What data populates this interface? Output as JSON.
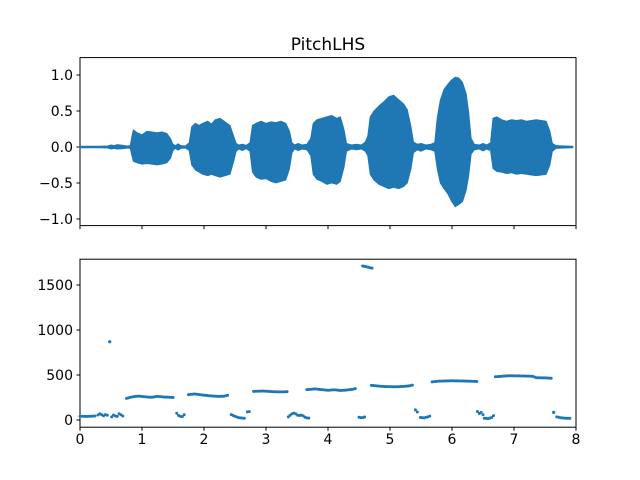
{
  "figure": {
    "background": "#ffffff"
  },
  "colors": {
    "series": "#1f77b4",
    "text": "#000000",
    "spine": "#000000"
  },
  "chart_data": [
    {
      "id": "waveform",
      "type": "area",
      "title": "PitchLHS",
      "xlabel": "",
      "ylabel": "",
      "xlim": [
        0,
        8
      ],
      "ylim": [
        -1.092,
        1.242
      ],
      "grid": false,
      "legend": "none",
      "xticks": {
        "values": [
          0,
          1,
          2,
          3,
          4,
          5,
          6,
          7,
          8
        ],
        "labels": [
          "",
          "",
          "",
          "",
          "",
          "",
          "",
          "",
          ""
        ]
      },
      "yticks": {
        "values": [
          1.0,
          0.5,
          0.0,
          -0.5,
          -1.0
        ],
        "labels": [
          "1.0",
          "0.5",
          "0.0",
          "−0.5",
          "−1.0"
        ]
      },
      "envelope_t_lo_hi": [
        [
          0.0,
          -0.012,
          0.012
        ],
        [
          0.3,
          -0.012,
          0.012
        ],
        [
          0.45,
          -0.015,
          0.015
        ],
        [
          0.5,
          -0.03,
          0.03
        ],
        [
          0.55,
          -0.02,
          0.02
        ],
        [
          0.6,
          -0.03,
          0.035
        ],
        [
          0.68,
          -0.025,
          0.025
        ],
        [
          0.76,
          -0.015,
          0.015
        ],
        [
          0.81,
          -0.02,
          0.02
        ],
        [
          0.83,
          -0.1,
          0.12
        ],
        [
          0.86,
          -0.2,
          0.24
        ],
        [
          0.92,
          -0.22,
          0.2
        ],
        [
          1.0,
          -0.24,
          0.17
        ],
        [
          1.08,
          -0.23,
          0.22
        ],
        [
          1.16,
          -0.24,
          0.21
        ],
        [
          1.24,
          -0.25,
          0.2
        ],
        [
          1.32,
          -0.24,
          0.21
        ],
        [
          1.4,
          -0.22,
          0.19
        ],
        [
          1.46,
          -0.16,
          0.12
        ],
        [
          1.5,
          -0.05,
          0.04
        ],
        [
          1.54,
          -0.02,
          0.02
        ],
        [
          1.58,
          -0.045,
          0.045
        ],
        [
          1.63,
          -0.02,
          0.02
        ],
        [
          1.7,
          -0.015,
          0.015
        ],
        [
          1.76,
          -0.05,
          0.06
        ],
        [
          1.8,
          -0.25,
          0.28
        ],
        [
          1.86,
          -0.32,
          0.33
        ],
        [
          1.92,
          -0.35,
          0.3
        ],
        [
          1.98,
          -0.38,
          0.33
        ],
        [
          2.06,
          -0.4,
          0.36
        ],
        [
          2.12,
          -0.38,
          0.32
        ],
        [
          2.18,
          -0.4,
          0.38
        ],
        [
          2.26,
          -0.42,
          0.4
        ],
        [
          2.34,
          -0.4,
          0.35
        ],
        [
          2.42,
          -0.38,
          0.3
        ],
        [
          2.48,
          -0.2,
          0.15
        ],
        [
          2.52,
          -0.06,
          0.05
        ],
        [
          2.56,
          -0.03,
          0.03
        ],
        [
          2.62,
          -0.05,
          0.04
        ],
        [
          2.68,
          -0.025,
          0.025
        ],
        [
          2.74,
          -0.06,
          0.06
        ],
        [
          2.78,
          -0.35,
          0.3
        ],
        [
          2.84,
          -0.42,
          0.33
        ],
        [
          2.92,
          -0.45,
          0.36
        ],
        [
          3.0,
          -0.44,
          0.33
        ],
        [
          3.08,
          -0.48,
          0.35
        ],
        [
          3.16,
          -0.5,
          0.34
        ],
        [
          3.24,
          -0.48,
          0.36
        ],
        [
          3.32,
          -0.46,
          0.33
        ],
        [
          3.38,
          -0.3,
          0.22
        ],
        [
          3.42,
          -0.08,
          0.06
        ],
        [
          3.46,
          -0.03,
          0.03
        ],
        [
          3.52,
          -0.05,
          0.05
        ],
        [
          3.58,
          -0.03,
          0.03
        ],
        [
          3.66,
          -0.04,
          0.04
        ],
        [
          3.72,
          -0.12,
          0.12
        ],
        [
          3.76,
          -0.38,
          0.33
        ],
        [
          3.82,
          -0.45,
          0.38
        ],
        [
          3.9,
          -0.48,
          0.4
        ],
        [
          3.98,
          -0.52,
          0.42
        ],
        [
          4.06,
          -0.5,
          0.44
        ],
        [
          4.14,
          -0.52,
          0.4
        ],
        [
          4.2,
          -0.48,
          0.42
        ],
        [
          4.26,
          -0.28,
          0.24
        ],
        [
          4.3,
          -0.06,
          0.05
        ],
        [
          4.38,
          -0.03,
          0.03
        ],
        [
          4.46,
          -0.04,
          0.04
        ],
        [
          4.54,
          -0.03,
          0.03
        ],
        [
          4.6,
          -0.06,
          0.07
        ],
        [
          4.64,
          -0.12,
          0.15
        ],
        [
          4.68,
          -0.38,
          0.42
        ],
        [
          4.74,
          -0.46,
          0.5
        ],
        [
          4.82,
          -0.52,
          0.57
        ],
        [
          4.9,
          -0.55,
          0.63
        ],
        [
          4.98,
          -0.58,
          0.7
        ],
        [
          5.06,
          -0.56,
          0.72
        ],
        [
          5.14,
          -0.58,
          0.66
        ],
        [
          5.22,
          -0.55,
          0.6
        ],
        [
          5.28,
          -0.5,
          0.52
        ],
        [
          5.34,
          -0.3,
          0.28
        ],
        [
          5.38,
          -0.08,
          0.07
        ],
        [
          5.44,
          -0.04,
          0.04
        ],
        [
          5.5,
          -0.06,
          0.05
        ],
        [
          5.58,
          -0.03,
          0.03
        ],
        [
          5.66,
          -0.04,
          0.04
        ],
        [
          5.72,
          -0.06,
          0.06
        ],
        [
          5.76,
          -0.3,
          0.4
        ],
        [
          5.81,
          -0.5,
          0.65
        ],
        [
          5.87,
          -0.58,
          0.8
        ],
        [
          5.93,
          -0.65,
          0.87
        ],
        [
          5.99,
          -0.75,
          0.93
        ],
        [
          6.05,
          -0.83,
          0.97
        ],
        [
          6.11,
          -0.8,
          0.96
        ],
        [
          6.17,
          -0.76,
          0.9
        ],
        [
          6.23,
          -0.6,
          0.74
        ],
        [
          6.27,
          -0.4,
          0.48
        ],
        [
          6.31,
          -0.1,
          0.12
        ],
        [
          6.36,
          -0.04,
          0.04
        ],
        [
          6.44,
          -0.03,
          0.03
        ],
        [
          6.5,
          -0.055,
          0.05
        ],
        [
          6.56,
          -0.03,
          0.03
        ],
        [
          6.62,
          -0.05,
          0.06
        ],
        [
          6.66,
          -0.3,
          0.4
        ],
        [
          6.72,
          -0.34,
          0.42
        ],
        [
          6.8,
          -0.35,
          0.38
        ],
        [
          6.88,
          -0.37,
          0.36
        ],
        [
          6.96,
          -0.36,
          0.38
        ],
        [
          7.04,
          -0.38,
          0.37
        ],
        [
          7.12,
          -0.37,
          0.38
        ],
        [
          7.2,
          -0.38,
          0.36
        ],
        [
          7.28,
          -0.39,
          0.37
        ],
        [
          7.36,
          -0.4,
          0.38
        ],
        [
          7.44,
          -0.39,
          0.37
        ],
        [
          7.52,
          -0.38,
          0.36
        ],
        [
          7.58,
          -0.25,
          0.22
        ],
        [
          7.62,
          -0.06,
          0.05
        ],
        [
          7.68,
          -0.02,
          0.02
        ],
        [
          7.82,
          -0.015,
          0.015
        ],
        [
          7.95,
          -0.012,
          0.012
        ]
      ]
    },
    {
      "id": "pitch",
      "type": "scatter",
      "title": "",
      "xlabel": "",
      "ylabel": "",
      "xlim": [
        0,
        8
      ],
      "ylim": [
        -80,
        1787
      ],
      "grid": false,
      "legend": "none",
      "xticks": {
        "values": [
          0,
          1,
          2,
          3,
          4,
          5,
          6,
          7,
          8
        ],
        "labels": [
          "0",
          "1",
          "2",
          "3",
          "4",
          "5",
          "6",
          "7",
          "8"
        ]
      },
      "yticks": {
        "values": [
          0,
          500,
          1000,
          1500
        ],
        "labels": [
          "0",
          "500",
          "1000",
          "1500"
        ]
      },
      "dot_interval": 0.03,
      "segments": [
        [
          [
            0.0,
            42
          ],
          [
            0.1,
            40
          ],
          [
            0.2,
            42
          ],
          [
            0.26,
            45
          ]
        ],
        [
          [
            0.29,
            55
          ],
          [
            0.33,
            75
          ],
          [
            0.37,
            42
          ],
          [
            0.42,
            65
          ],
          [
            0.46,
            40
          ]
        ],
        [
          [
            0.48,
            870
          ]
        ],
        [
          [
            0.51,
            35
          ],
          [
            0.55,
            60
          ],
          [
            0.59,
            30
          ],
          [
            0.63,
            70
          ],
          [
            0.67,
            55
          ],
          [
            0.7,
            40
          ]
        ],
        [
          [
            0.75,
            240
          ],
          [
            0.85,
            258
          ],
          [
            0.95,
            266
          ],
          [
            1.05,
            258
          ],
          [
            1.15,
            252
          ],
          [
            1.25,
            263
          ],
          [
            1.35,
            256
          ],
          [
            1.45,
            252
          ],
          [
            1.52,
            250
          ]
        ],
        [
          [
            1.56,
            75
          ],
          [
            1.6,
            42
          ],
          [
            1.65,
            38
          ],
          [
            1.7,
            72
          ]
        ],
        [
          [
            1.75,
            282
          ],
          [
            1.85,
            290
          ],
          [
            1.95,
            280
          ],
          [
            2.05,
            272
          ],
          [
            2.15,
            266
          ],
          [
            2.25,
            262
          ],
          [
            2.33,
            265
          ],
          [
            2.4,
            280
          ]
        ],
        [
          [
            2.44,
            60
          ],
          [
            2.5,
            40
          ],
          [
            2.55,
            28
          ],
          [
            2.6,
            22
          ],
          [
            2.65,
            20
          ]
        ],
        [
          [
            2.7,
            90
          ],
          [
            2.75,
            95
          ]
        ],
        [
          [
            2.8,
            318
          ],
          [
            2.95,
            322
          ],
          [
            3.1,
            315
          ],
          [
            3.25,
            312
          ],
          [
            3.36,
            316
          ]
        ],
        [
          [
            3.36,
            35
          ],
          [
            3.42,
            70
          ],
          [
            3.46,
            78
          ],
          [
            3.52,
            48
          ],
          [
            3.58,
            55
          ],
          [
            3.64,
            26
          ],
          [
            3.7,
            20
          ]
        ],
        [
          [
            3.66,
            338
          ],
          [
            3.8,
            345
          ],
          [
            3.9,
            337
          ],
          [
            4.0,
            330
          ],
          [
            4.1,
            336
          ],
          [
            4.2,
            328
          ],
          [
            4.3,
            333
          ],
          [
            4.4,
            342
          ],
          [
            4.46,
            352
          ]
        ],
        [
          [
            4.5,
            30
          ],
          [
            4.55,
            25
          ],
          [
            4.6,
            35
          ]
        ],
        [
          [
            4.56,
            1712
          ],
          [
            4.62,
            1703
          ],
          [
            4.68,
            1692
          ],
          [
            4.73,
            1685
          ]
        ],
        [
          [
            4.7,
            385
          ],
          [
            4.82,
            377
          ],
          [
            4.95,
            371
          ],
          [
            5.1,
            369
          ],
          [
            5.22,
            373
          ],
          [
            5.32,
            380
          ],
          [
            5.38,
            392
          ]
        ],
        [
          [
            5.41,
            112
          ],
          [
            5.45,
            82
          ]
        ],
        [
          [
            5.49,
            28
          ],
          [
            5.55,
            24
          ],
          [
            5.61,
            35
          ],
          [
            5.65,
            45
          ]
        ],
        [
          [
            5.68,
            424
          ],
          [
            5.8,
            432
          ],
          [
            6.0,
            436
          ],
          [
            6.2,
            433
          ],
          [
            6.4,
            428
          ]
        ],
        [
          [
            6.41,
            95
          ],
          [
            6.44,
            72
          ],
          [
            6.47,
            85
          ],
          [
            6.5,
            60
          ]
        ],
        [
          [
            6.52,
            20
          ],
          [
            6.58,
            15
          ],
          [
            6.64,
            28
          ],
          [
            6.68,
            55
          ]
        ],
        [
          [
            6.7,
            480
          ],
          [
            6.9,
            492
          ],
          [
            7.1,
            490
          ],
          [
            7.3,
            486
          ],
          [
            7.36,
            470
          ],
          [
            7.5,
            468
          ],
          [
            7.62,
            464
          ]
        ],
        [
          [
            7.64,
            85
          ]
        ],
        [
          [
            7.69,
            35
          ],
          [
            7.76,
            24
          ],
          [
            7.84,
            20
          ],
          [
            7.9,
            18
          ]
        ]
      ]
    }
  ]
}
